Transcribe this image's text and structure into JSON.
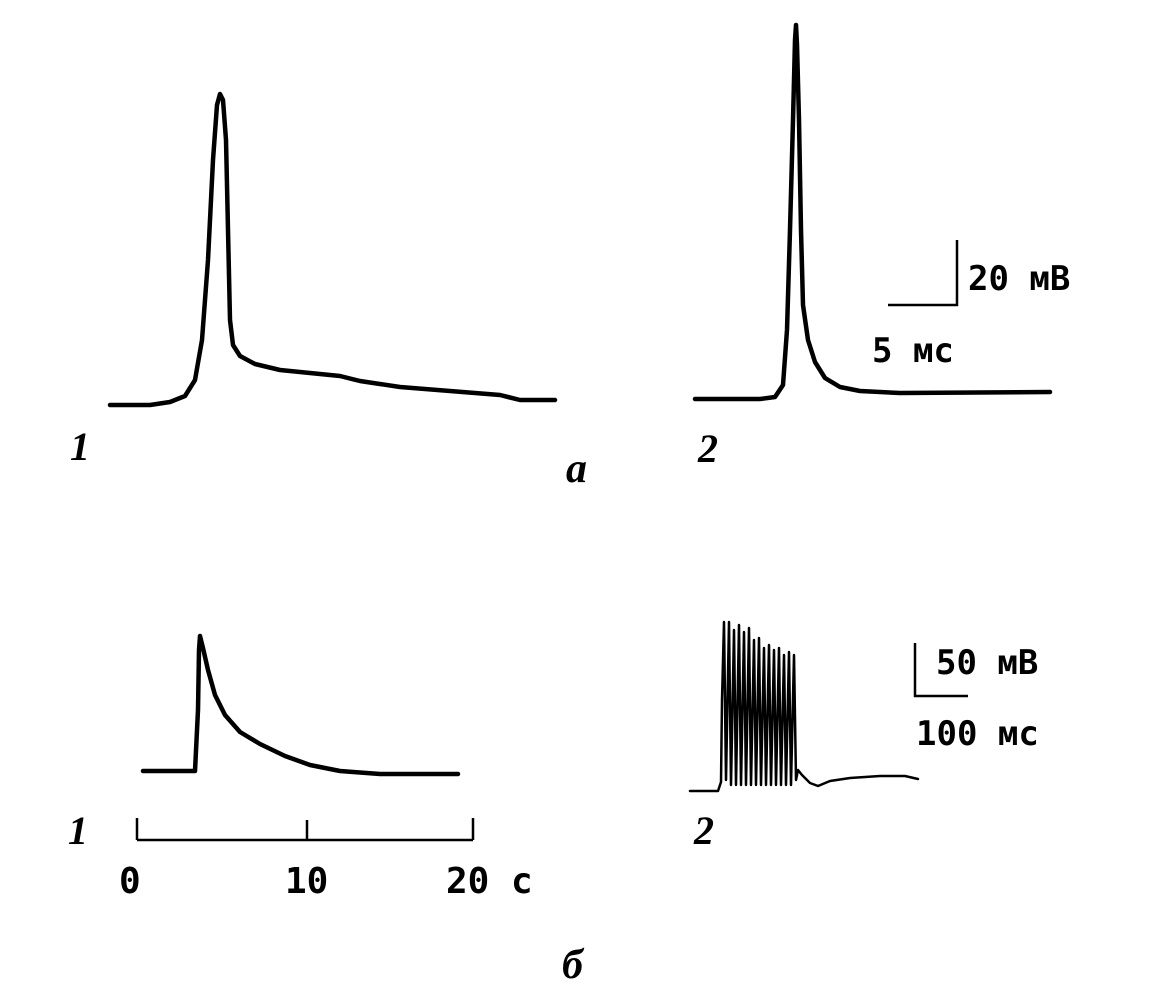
{
  "figure": {
    "panel_a": {
      "letter": "а",
      "trace1_label": "1",
      "trace2_label": "2",
      "scale_voltage": "20 мВ",
      "scale_time": "5 мс"
    },
    "panel_b": {
      "letter": "б",
      "trace1_label": "1",
      "trace2_label": "2",
      "scale_voltage": "50 мВ",
      "scale_time": "100 мс",
      "time_axis": {
        "ticks": [
          "0",
          "10",
          "20 с"
        ]
      }
    },
    "colors": {
      "ink": "#000000",
      "background": "#ffffff"
    }
  }
}
